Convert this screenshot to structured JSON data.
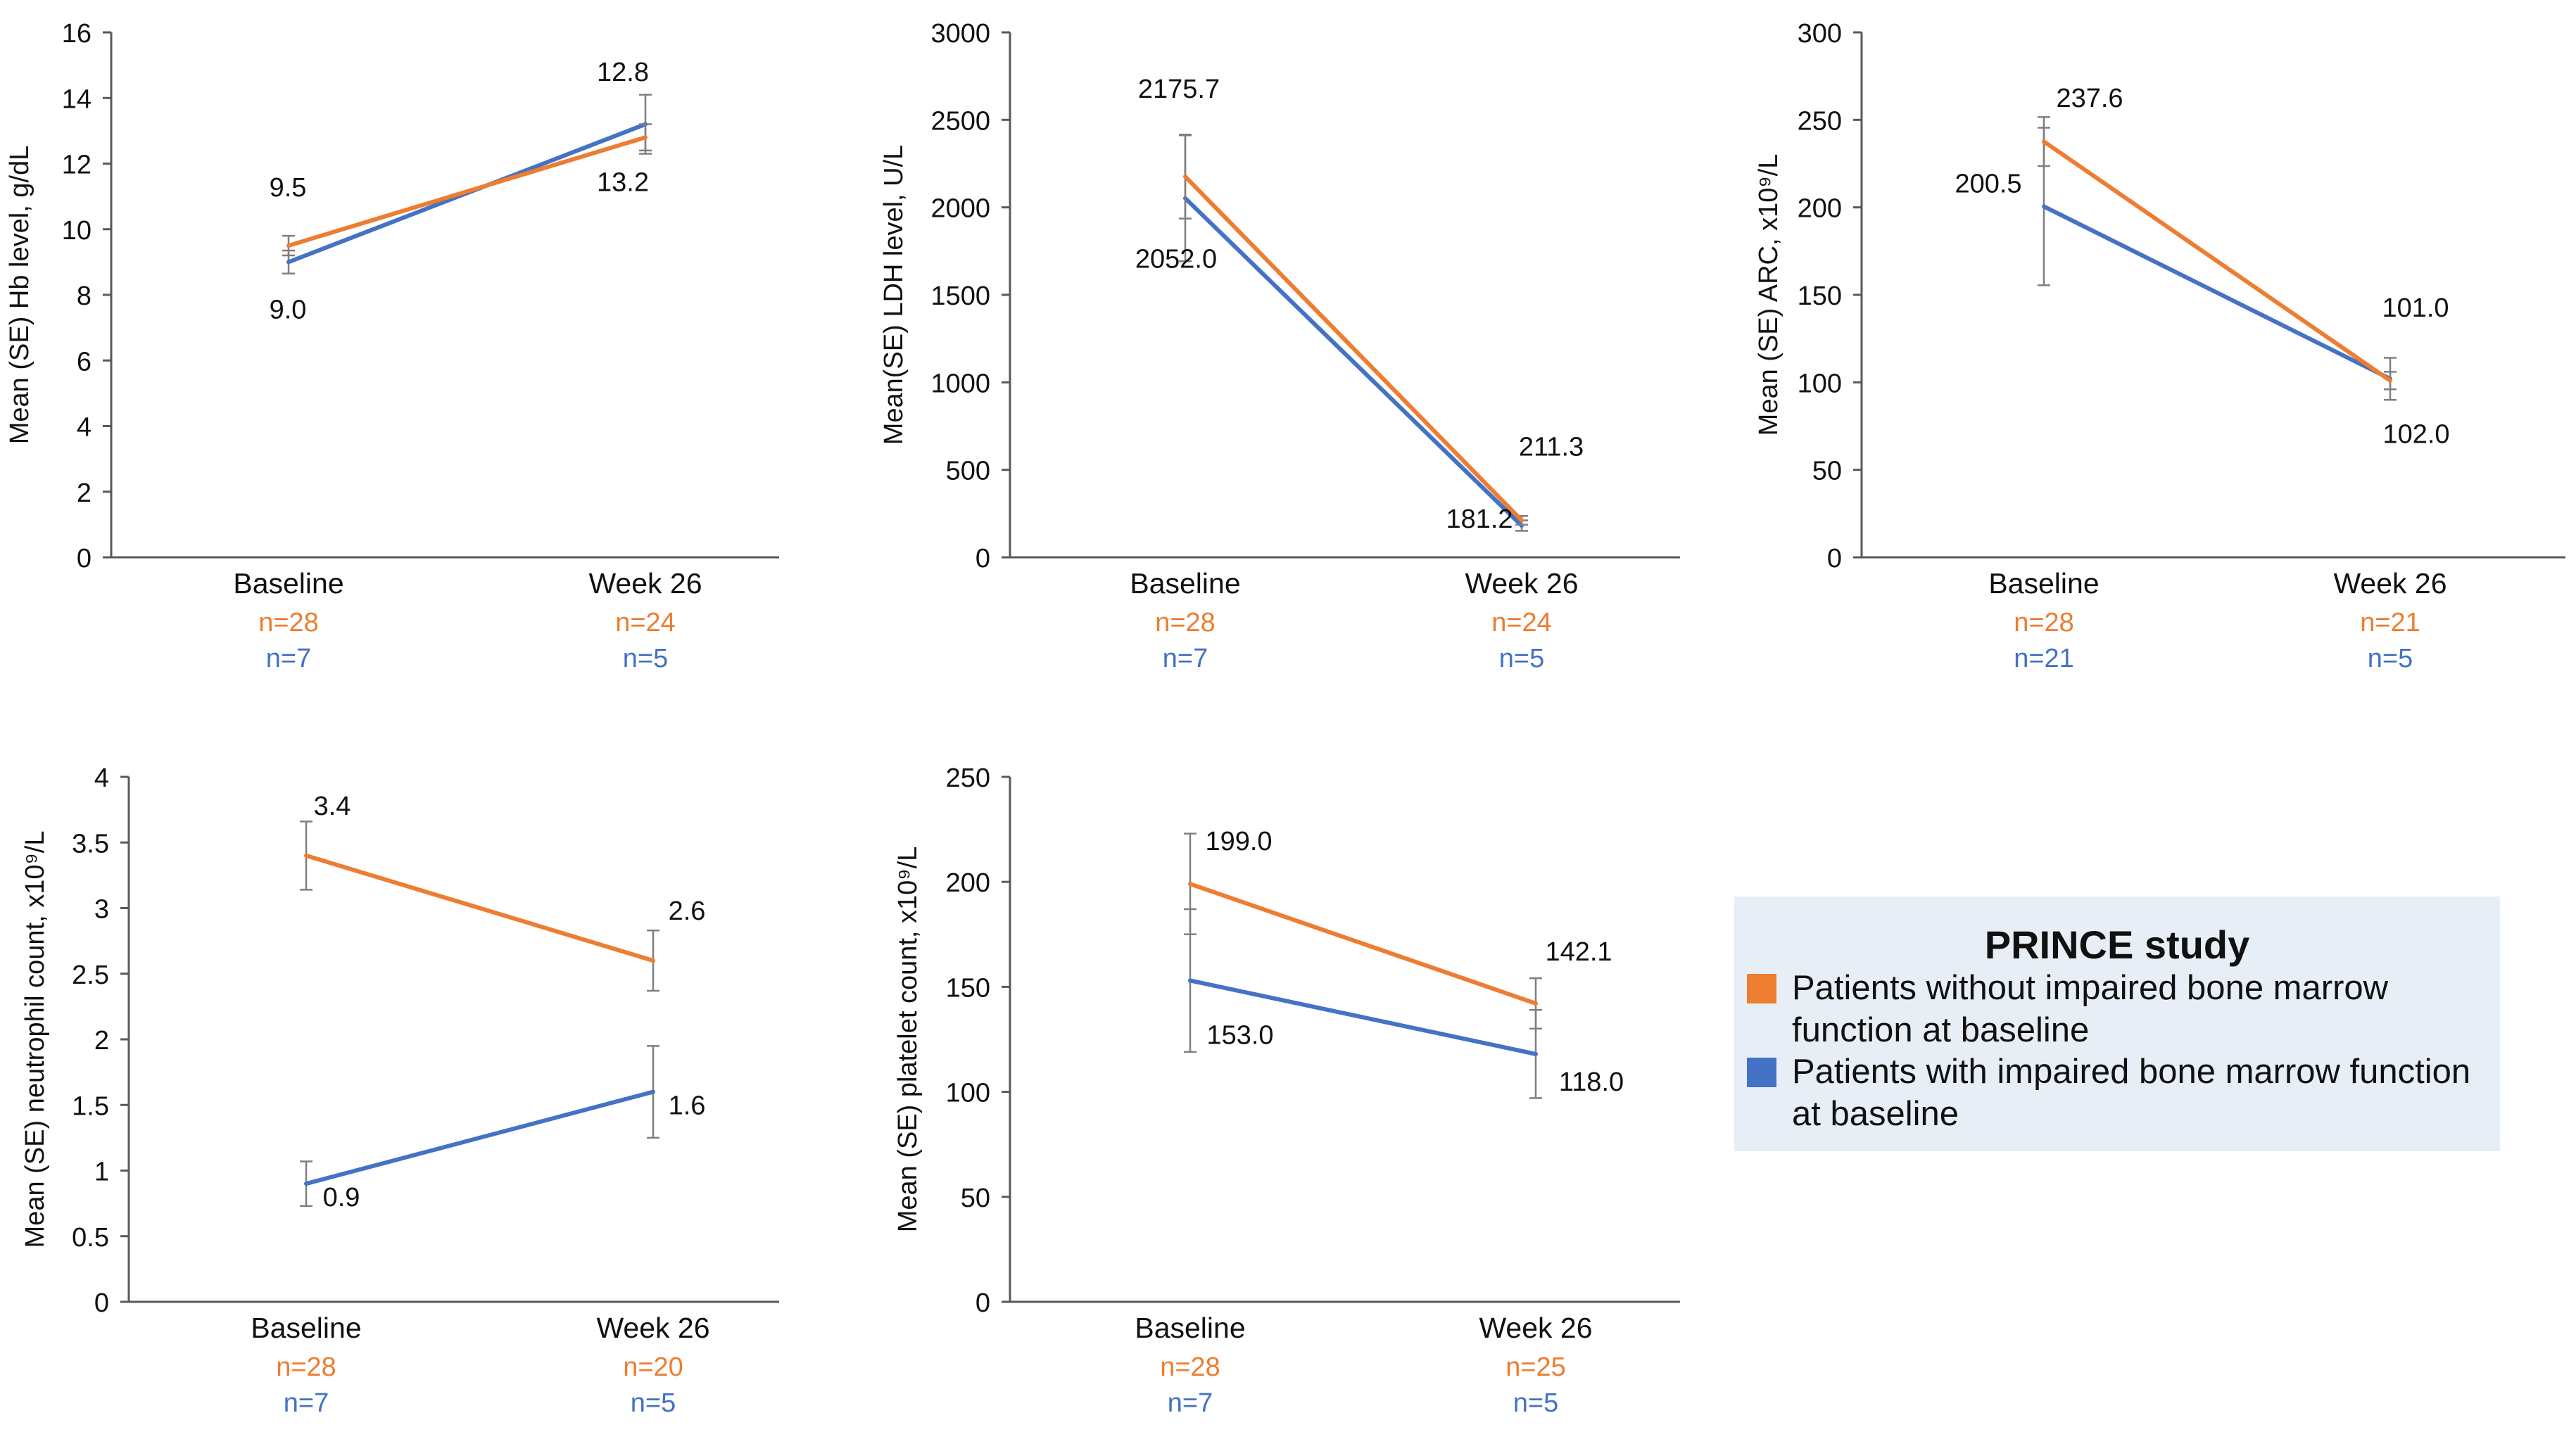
{
  "colors": {
    "without": "#ed7d31",
    "with": "#4472c4",
    "axis": "#595959",
    "errorbar": "#7f7f7f",
    "text": "#111111",
    "legend_bg": "#e8eef6"
  },
  "legend": {
    "title": "PRINCE study",
    "entries": [
      {
        "label": "Patients without impaired bone marrow function at baseline",
        "series": "without"
      },
      {
        "label": "Patients with impaired bone marrow function at baseline",
        "series": "with"
      }
    ]
  },
  "chart_data": [
    {
      "type": "line",
      "ylabel": "Mean (SE) Hb level, g/dL",
      "ylim": [
        0,
        16
      ],
      "yticks": [
        0,
        2,
        4,
        6,
        8,
        10,
        12,
        14,
        16
      ],
      "categories": [
        "Baseline",
        "Week 26"
      ],
      "n_labels": [
        {
          "without": "n=28",
          "with": "n=7"
        },
        {
          "without": "n=24",
          "with": "n=5"
        }
      ],
      "series": [
        {
          "key": "without",
          "name": "Patients without impaired bone marrow function at baseline",
          "values": [
            9.5,
            12.8
          ],
          "se": [
            0.3,
            0.4
          ],
          "labels": [
            "9.5",
            "12.8"
          ]
        },
        {
          "key": "with",
          "name": "Patients with impaired bone marrow function at baseline",
          "values": [
            9.0,
            13.2
          ],
          "se": [
            0.35,
            0.9
          ],
          "labels": [
            "9.0",
            "13.2"
          ]
        }
      ]
    },
    {
      "type": "line",
      "ylabel": "Mean(SE) LDH level, U/L",
      "ylim": [
        0,
        3000
      ],
      "yticks": [
        0,
        500,
        1000,
        1500,
        2000,
        2500,
        3000
      ],
      "categories": [
        "Baseline",
        "Week 26"
      ],
      "n_labels": [
        {
          "without": "n=28",
          "with": "n=7"
        },
        {
          "without": "n=24",
          "with": "n=5"
        }
      ],
      "series": [
        {
          "key": "without",
          "name": "Patients without impaired bone marrow function at baseline",
          "values": [
            2175.7,
            211.3
          ],
          "se": [
            240,
            25
          ],
          "labels": [
            "2175.7",
            "211.3"
          ]
        },
        {
          "key": "with",
          "name": "Patients with impaired bone marrow function at baseline",
          "values": [
            2052.0,
            181.2
          ],
          "se": [
            360,
            30
          ],
          "labels": [
            "2052.0",
            "181.2"
          ]
        }
      ]
    },
    {
      "type": "line",
      "ylabel": "Mean (SE) ARC, x10⁹/L",
      "ylim": [
        0,
        300
      ],
      "yticks": [
        0,
        50,
        100,
        150,
        200,
        250,
        300
      ],
      "categories": [
        "Baseline",
        "Week 26"
      ],
      "n_labels": [
        {
          "without": "n=28",
          "with": "n=21"
        },
        {
          "without": "n=21",
          "with": "n=5"
        }
      ],
      "series": [
        {
          "key": "without",
          "name": "Patients without impaired bone marrow function at baseline",
          "values": [
            237.6,
            101.0
          ],
          "se": [
            14,
            5
          ],
          "labels": [
            "237.6",
            "101.0"
          ]
        },
        {
          "key": "with",
          "name": "Patients with impaired bone marrow function at baseline",
          "values": [
            200.5,
            102.0
          ],
          "se": [
            45,
            12
          ],
          "labels": [
            "200.5",
            "102.0"
          ]
        }
      ]
    },
    {
      "type": "line",
      "ylabel": "Mean (SE) neutrophil count, x10⁹/L",
      "ylim": [
        0,
        4
      ],
      "yticks": [
        0,
        0.5,
        1,
        1.5,
        2,
        2.5,
        3,
        3.5,
        4
      ],
      "categories": [
        "Baseline",
        "Week 26"
      ],
      "n_labels": [
        {
          "without": "n=28",
          "with": "n=7"
        },
        {
          "without": "n=20",
          "with": "n=5"
        }
      ],
      "series": [
        {
          "key": "without",
          "name": "Patients without impaired bone marrow function at baseline",
          "values": [
            3.4,
            2.6
          ],
          "se": [
            0.26,
            0.23
          ],
          "labels": [
            "3.4",
            "2.6"
          ]
        },
        {
          "key": "with",
          "name": "Patients with impaired bone marrow function at baseline",
          "values": [
            0.9,
            1.6
          ],
          "se": [
            0.17,
            0.35
          ],
          "labels": [
            "0.9",
            "1.6"
          ]
        }
      ]
    },
    {
      "type": "line",
      "ylabel": "Mean (SE) platelet count, x10⁹/L",
      "ylim": [
        0,
        250
      ],
      "yticks": [
        0,
        50,
        100,
        150,
        200,
        250
      ],
      "categories": [
        "Baseline",
        "Week 26"
      ],
      "n_labels": [
        {
          "without": "n=28",
          "with": "n=7"
        },
        {
          "without": "n=25",
          "with": "n=5"
        }
      ],
      "series": [
        {
          "key": "without",
          "name": "Patients without impaired bone marrow function at baseline",
          "values": [
            199.0,
            142.1
          ],
          "se": [
            24,
            12
          ],
          "labels": [
            "199.0",
            "142.1"
          ]
        },
        {
          "key": "with",
          "name": "Patients with impaired bone marrow function at baseline",
          "values": [
            153.0,
            118.0
          ],
          "se": [
            34,
            21
          ],
          "labels": [
            "153.0",
            "118.0"
          ]
        }
      ]
    }
  ]
}
